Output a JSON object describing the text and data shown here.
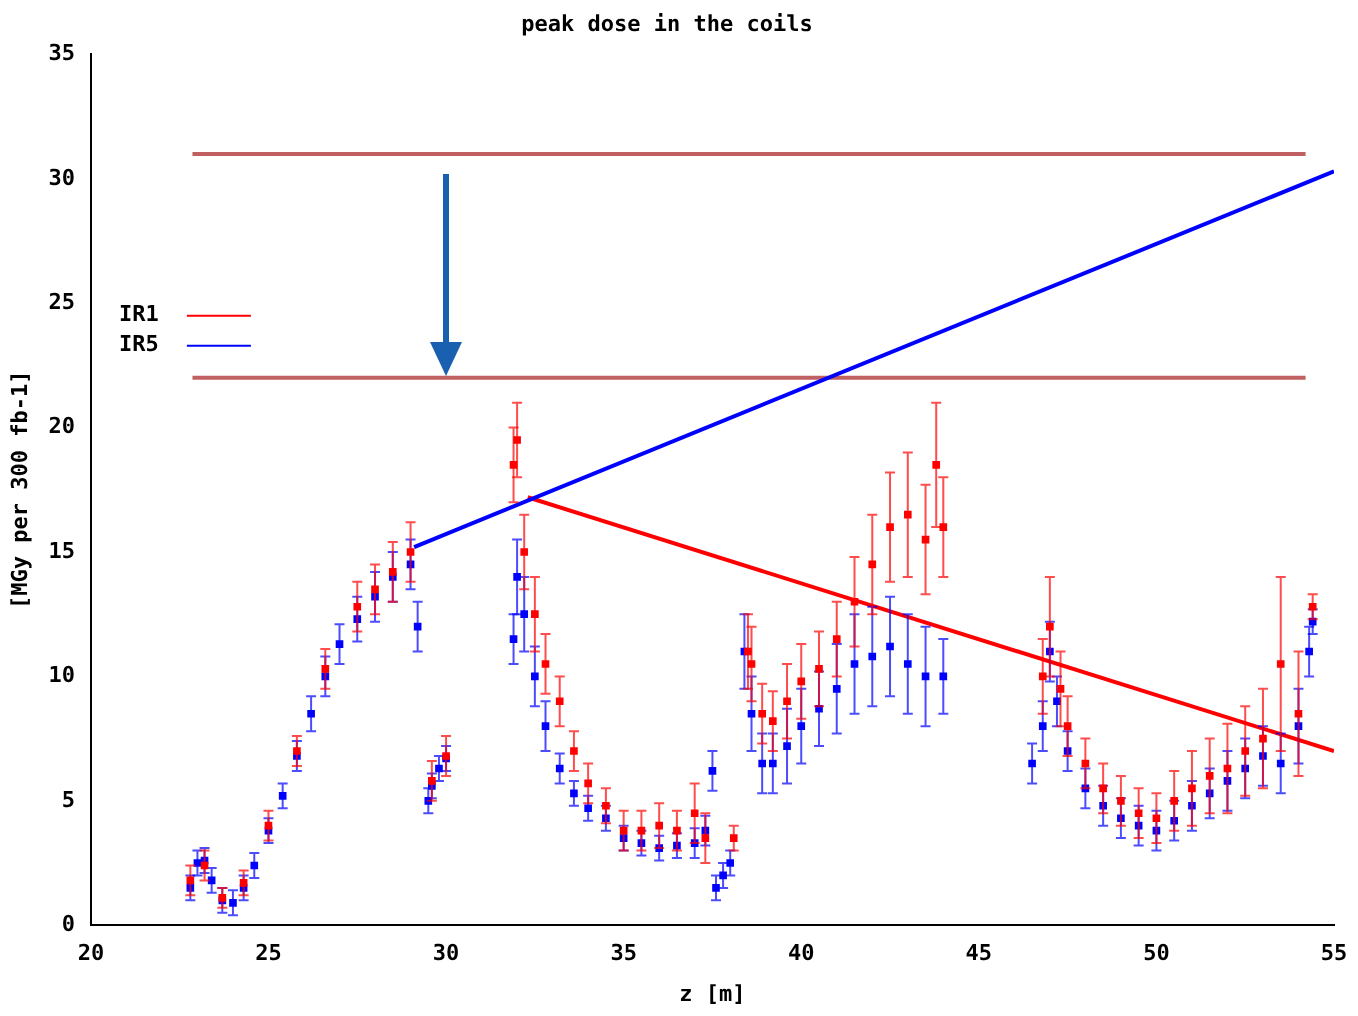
{
  "chart_data": {
    "type": "scatter",
    "title": "peak dose in the coils",
    "xlabel": "z [m]",
    "ylabel": "[MGy per 300 fb-1]",
    "xlim": [
      20,
      55
    ],
    "xticks": [
      20,
      25,
      30,
      35,
      40,
      45,
      50,
      55
    ],
    "ylim": [
      0,
      35
    ],
    "yticks": [
      0,
      5,
      10,
      15,
      20,
      25,
      30,
      35
    ],
    "grid": false,
    "legend": "left",
    "series": [
      {
        "name": "IR1",
        "color": "#ff0000",
        "marker": "square",
        "x": [
          22.8,
          23.2,
          23.7,
          24.3,
          25.0,
          25.8,
          26.6,
          27.5,
          28.0,
          28.5,
          29.0,
          29.6,
          30.0,
          31.9,
          32.0,
          32.2,
          32.5,
          32.8,
          33.2,
          33.6,
          34.0,
          34.5,
          35.0,
          35.5,
          36.0,
          36.5,
          37.0,
          37.3,
          38.1,
          38.5,
          38.6,
          38.9,
          39.2,
          39.6,
          40.0,
          40.5,
          41.0,
          41.5,
          42.0,
          42.5,
          43.0,
          43.5,
          43.8,
          44.0,
          46.8,
          47.0,
          47.3,
          47.5,
          48.0,
          48.5,
          49.0,
          49.5,
          50.0,
          50.5,
          51.0,
          51.5,
          52.0,
          52.5,
          53.0,
          53.5,
          54.0,
          54.4
        ],
        "values": [
          1.8,
          2.4,
          1.1,
          1.7,
          4.0,
          7.0,
          10.3,
          12.8,
          13.5,
          14.2,
          15.0,
          5.8,
          6.8,
          18.5,
          19.5,
          15.0,
          12.5,
          10.5,
          9.0,
          7.0,
          5.7,
          4.8,
          3.8,
          3.8,
          4.0,
          3.8,
          4.5,
          3.5,
          3.5,
          11.0,
          10.5,
          8.5,
          8.2,
          9.0,
          9.8,
          10.3,
          11.5,
          13.0,
          14.5,
          16.0,
          16.5,
          15.5,
          18.5,
          16.0,
          10.0,
          12.0,
          9.5,
          8.0,
          6.5,
          5.5,
          5.0,
          4.5,
          4.3,
          5.0,
          5.5,
          6.0,
          6.3,
          7.0,
          7.5,
          10.5,
          8.5,
          12.8
        ],
        "errors": [
          0.6,
          0.6,
          0.4,
          0.5,
          0.6,
          0.6,
          0.8,
          1.0,
          1.0,
          1.2,
          1.2,
          0.8,
          0.8,
          1.5,
          1.5,
          1.5,
          1.5,
          1.2,
          1.0,
          0.8,
          0.8,
          0.7,
          0.8,
          0.8,
          0.9,
          0.8,
          1.2,
          1.0,
          0.5,
          1.5,
          1.5,
          1.2,
          1.2,
          1.5,
          1.5,
          1.5,
          1.5,
          1.8,
          2.0,
          2.2,
          2.5,
          2.2,
          2.5,
          2.0,
          1.5,
          2.0,
          1.5,
          1.2,
          1.0,
          1.0,
          1.0,
          1.0,
          1.0,
          1.2,
          1.5,
          1.5,
          1.8,
          1.8,
          2.0,
          3.5,
          2.5,
          0.5
        ]
      },
      {
        "name": "IR5",
        "color": "#0000ff",
        "marker": "square",
        "x": [
          22.8,
          23.0,
          23.2,
          23.4,
          23.7,
          24.0,
          24.3,
          24.6,
          25.0,
          25.4,
          25.8,
          26.2,
          26.6,
          27.0,
          27.5,
          28.0,
          28.5,
          29.0,
          29.2,
          29.5,
          29.6,
          29.8,
          30.0,
          31.9,
          32.0,
          32.2,
          32.5,
          32.8,
          33.2,
          33.6,
          34.0,
          34.5,
          35.0,
          35.5,
          36.0,
          36.5,
          37.0,
          37.3,
          37.5,
          37.6,
          37.8,
          38.0,
          38.4,
          38.6,
          38.9,
          39.2,
          39.6,
          40.0,
          40.5,
          41.0,
          41.5,
          42.0,
          42.5,
          43.0,
          43.5,
          44.0,
          46.5,
          46.8,
          47.0,
          47.2,
          47.5,
          48.0,
          48.5,
          49.0,
          49.5,
          50.0,
          50.5,
          51.0,
          51.5,
          52.0,
          52.5,
          53.0,
          53.5,
          54.0,
          54.3,
          54.4
        ],
        "values": [
          1.5,
          2.5,
          2.6,
          1.8,
          1.0,
          0.9,
          1.5,
          2.4,
          3.8,
          5.2,
          6.8,
          8.5,
          10.0,
          11.3,
          12.3,
          13.2,
          14.0,
          14.5,
          12.0,
          5.0,
          5.6,
          6.3,
          6.7,
          11.5,
          14.0,
          12.5,
          10.0,
          8.0,
          6.3,
          5.3,
          4.7,
          4.3,
          3.5,
          3.3,
          3.1,
          3.2,
          3.3,
          3.8,
          6.2,
          1.5,
          2.0,
          2.5,
          11.0,
          8.5,
          6.5,
          6.5,
          7.2,
          8.0,
          8.7,
          9.5,
          10.5,
          10.8,
          11.2,
          10.5,
          10.0,
          10.0,
          6.5,
          8.0,
          11.0,
          9.0,
          7.0,
          5.5,
          4.8,
          4.3,
          4.0,
          3.8,
          4.2,
          4.8,
          5.3,
          5.8,
          6.3,
          6.8,
          6.5,
          8.0,
          11.0,
          12.2
        ],
        "errors": [
          0.5,
          0.5,
          0.5,
          0.5,
          0.5,
          0.5,
          0.5,
          0.5,
          0.5,
          0.5,
          0.6,
          0.7,
          0.8,
          0.8,
          0.9,
          1.0,
          1.0,
          1.0,
          1.0,
          0.5,
          0.5,
          0.5,
          0.5,
          1.0,
          1.5,
          1.5,
          1.2,
          1.0,
          0.6,
          0.5,
          0.5,
          0.5,
          0.5,
          0.5,
          0.5,
          0.5,
          0.6,
          0.6,
          0.8,
          0.5,
          0.5,
          0.5,
          1.5,
          1.5,
          1.2,
          1.2,
          1.5,
          1.5,
          1.5,
          1.8,
          2.0,
          2.0,
          2.0,
          2.0,
          2.0,
          1.5,
          0.8,
          1.0,
          1.2,
          1.0,
          0.8,
          0.8,
          0.8,
          0.8,
          0.8,
          0.8,
          0.8,
          1.0,
          1.0,
          1.2,
          1.2,
          1.2,
          1.2,
          1.5,
          1.0,
          0.5
        ]
      },
      {
        "type": "line",
        "marker": "none",
        "color": "#0000ff",
        "x": [
          29.1,
          55
        ],
        "values": [
          15.2,
          30.3
        ]
      },
      {
        "type": "line",
        "marker": "none",
        "color": "#ff0000",
        "x": [
          32.3,
          55
        ],
        "values": [
          17.2,
          7
        ]
      },
      {
        "type": "line",
        "marker": "none",
        "color": "#c06060",
        "x": [
          22.86,
          54.2
        ],
        "values": [
          31,
          31
        ]
      },
      {
        "type": "line",
        "marker": "none",
        "color": "#c06060",
        "x": [
          22.86,
          54.2
        ],
        "values": [
          22,
          22
        ]
      }
    ]
  }
}
